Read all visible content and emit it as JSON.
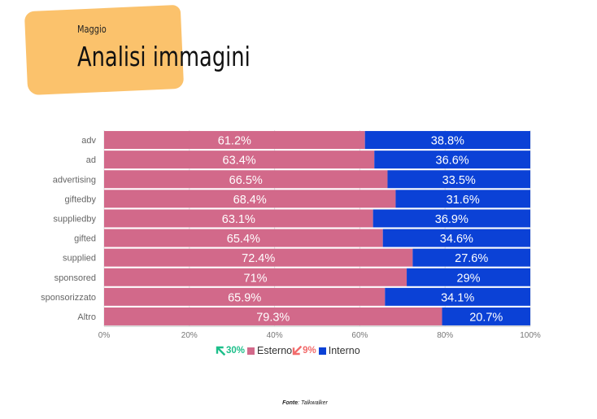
{
  "header": {
    "subtitle": "Maggio",
    "title": "Analisi immagini"
  },
  "legend": {
    "esterno_change": "30%",
    "esterno_label": "Esterno",
    "interno_change": "9%",
    "interno_label": "Interno",
    "up_color": "#1dbf8a",
    "down_color": "#f26b6b"
  },
  "source": {
    "label": "Fonte",
    "value": ": Talkwalker"
  },
  "chart_data": {
    "type": "bar",
    "orientation": "horizontal",
    "stacked": "percent",
    "categories": [
      "adv",
      "ad",
      "advertising",
      "giftedby",
      "suppliedby",
      "gifted",
      "supplied",
      "sponsored",
      "sponsorizzato",
      "Altro"
    ],
    "series": [
      {
        "name": "Esterno",
        "color": "#d2698a",
        "values": [
          61.2,
          63.4,
          66.5,
          68.4,
          63.1,
          65.4,
          72.4,
          71,
          65.9,
          79.3
        ]
      },
      {
        "name": "Interno",
        "color": "#0b41d6",
        "values": [
          38.8,
          36.6,
          33.5,
          31.6,
          36.9,
          34.6,
          27.6,
          29,
          34.1,
          20.7
        ]
      }
    ],
    "data_labels": {
      "Esterno": [
        "61.2%",
        "63.4%",
        "66.5%",
        "68.4%",
        "63.1%",
        "65.4%",
        "72.4%",
        "71%",
        "65.9%",
        "79.3%"
      ],
      "Interno": [
        "38.8%",
        "36.6%",
        "33.5%",
        "31.6%",
        "36.9%",
        "34.6%",
        "27.6%",
        "29%",
        "34.1%",
        "20.7%"
      ]
    },
    "xlim": [
      0,
      100
    ],
    "xticks": [
      "0%",
      "20%",
      "40%",
      "60%",
      "80%",
      "100%"
    ],
    "grid": true,
    "legend_position": "bottom"
  }
}
